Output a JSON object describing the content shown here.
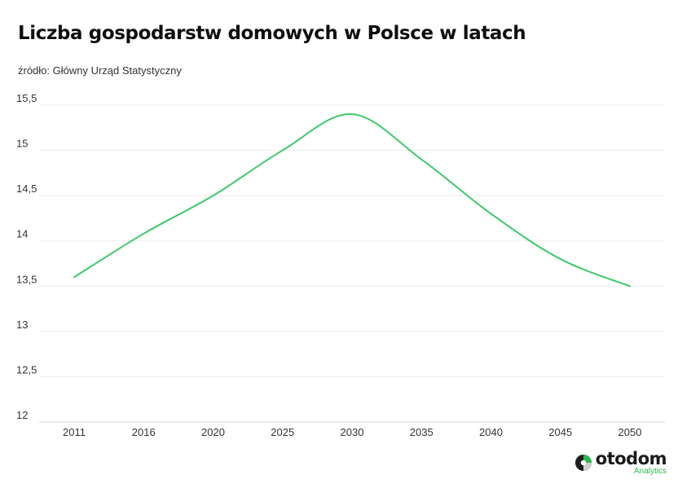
{
  "header": {
    "title": "Liczba gospodarstw domowych w Polsce w latach",
    "source": "źródło: Główny Urząd Statystyczny"
  },
  "brand": {
    "name": "otodom",
    "tagline": "Analytics",
    "accent": "#2db84d",
    "logo_icon": "otodom-logo-icon"
  },
  "chart_data": {
    "type": "line",
    "title": "Liczba gospodarstw domowych w Polsce w latach",
    "xlabel": "",
    "ylabel": "",
    "categories": [
      "2011",
      "2016",
      "2020",
      "2025",
      "2030",
      "2035",
      "2040",
      "2045",
      "2050"
    ],
    "y_tick_labels": [
      "12",
      "12,5",
      "13",
      "13,5",
      "14",
      "14,5",
      "15",
      "15,5"
    ],
    "y_ticks": [
      12,
      12.5,
      13,
      13.5,
      14,
      14.5,
      15,
      15.5
    ],
    "ylim": [
      12,
      15.5
    ],
    "grid": true,
    "legend": "none",
    "line_color": "#3ec96a",
    "series": [
      {
        "values": [
          13.6,
          14.08,
          14.5,
          15.0,
          15.4,
          14.9,
          14.3,
          13.8,
          13.5
        ]
      }
    ]
  }
}
